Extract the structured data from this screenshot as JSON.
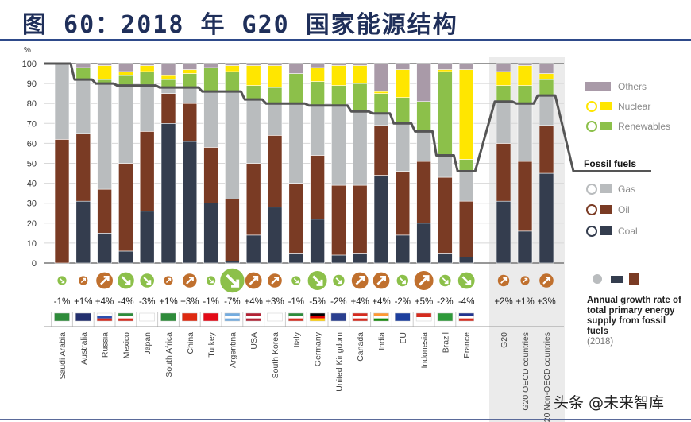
{
  "title": "图 60：2018 年 G20 国家能源结构",
  "watermark": "头条 @未来智库",
  "chart_data": {
    "type": "bar",
    "stacked": true,
    "ylabel": "%",
    "ylim": [
      0,
      100
    ],
    "yticks": [
      0,
      10,
      20,
      30,
      40,
      50,
      60,
      70,
      80,
      90,
      100
    ],
    "grid": true,
    "legend_position": "right",
    "categories": [
      "Saudi Arabia",
      "Australia",
      "Russia",
      "Mexico",
      "Japan",
      "South Africa",
      "China",
      "Turkey",
      "Argentina",
      "USA",
      "South Korea",
      "Italy",
      "Germany",
      "United Kingdom",
      "Canada",
      "India",
      "EU",
      "Indonesia",
      "Brazil",
      "France",
      "G20",
      "G20 OECD countries",
      "G20 Non-OECD countries"
    ],
    "series": [
      {
        "name": "Coal",
        "color": "#343d4e",
        "values": [
          0,
          31,
          15,
          6,
          26,
          70,
          61,
          30,
          1,
          14,
          28,
          5,
          22,
          4,
          5,
          44,
          14,
          20,
          5,
          3,
          31,
          16,
          45
        ]
      },
      {
        "name": "Oil",
        "color": "#7a3b24",
        "values": [
          62,
          34,
          22,
          44,
          40,
          15,
          19,
          28,
          31,
          36,
          36,
          35,
          32,
          35,
          34,
          25,
          32,
          31,
          38,
          28,
          29,
          35,
          24
        ]
      },
      {
        "name": "Gas",
        "color": "#b9bcbe",
        "values": [
          38,
          27,
          53,
          39,
          23,
          3,
          8,
          28,
          54,
          32,
          16,
          40,
          25,
          40,
          37,
          6,
          24,
          15,
          11,
          15,
          21,
          29,
          15
        ]
      },
      {
        "name": "Renewables",
        "color": "#8cc04a",
        "values": [
          0,
          6,
          2,
          5,
          7,
          4,
          7,
          12,
          10,
          7,
          8,
          15,
          12,
          10,
          14,
          10,
          13,
          15,
          42,
          6,
          8,
          9,
          8
        ]
      },
      {
        "name": "Nuclear",
        "color": "#ffe600",
        "values": [
          0,
          0,
          7,
          2,
          3,
          2,
          2,
          0,
          3,
          10,
          11,
          0,
          7,
          10,
          9,
          1,
          14,
          0,
          1,
          45,
          7,
          10,
          3
        ]
      },
      {
        "name": "Others",
        "color": "#a99aa8",
        "values": [
          0,
          2,
          1,
          4,
          1,
          6,
          3,
          2,
          1,
          1,
          1,
          5,
          2,
          1,
          1,
          14,
          3,
          19,
          3,
          3,
          4,
          1,
          5
        ]
      }
    ],
    "fossil_fuels_share": [
      100,
      92,
      90,
      89,
      89,
      88,
      88,
      86,
      86,
      82,
      80,
      80,
      79,
      79,
      76,
      75,
      70,
      66,
      54,
      46,
      81,
      80,
      84
    ],
    "fossil_line_label": "Fossil fuels",
    "fossil_line_color": "#555555",
    "growth_label": "Annual growth rate of total primary energy supply from fossil fuels",
    "growth_year": "(2018)",
    "growth_rates": [
      "-1%",
      "+1%",
      "+4%",
      "-4%",
      "-3%",
      "+1%",
      "+3%",
      "-1%",
      "-7%",
      "+4%",
      "+3%",
      "-1%",
      "-5%",
      "-2%",
      "+4%",
      "+4%",
      "-2%",
      "+5%",
      "-2%",
      "-4%",
      "+2%",
      "+1%",
      "+3%"
    ],
    "growth_values": [
      -1,
      1,
      4,
      -4,
      -3,
      1,
      3,
      -1,
      -7,
      4,
      3,
      -1,
      -5,
      -2,
      4,
      4,
      -2,
      5,
      -2,
      -4,
      2,
      1,
      3
    ],
    "growth_colors": {
      "up": "#c0702e",
      "down": "#8cc04a"
    },
    "aggregate_group": [
      "G20",
      "G20 OECD countries",
      "G20 Non-OECD countries"
    ]
  },
  "flags": [
    [
      "#2e8b3a"
    ],
    [
      "#23306e"
    ],
    [
      "#ffffff",
      "#2a4fb0",
      "#d52b1e"
    ],
    [
      "#2e8b3a",
      "#ffffff",
      "#d52b1e"
    ],
    [
      "#ffffff"
    ],
    [
      "#2e8b3a"
    ],
    [
      "#de2910"
    ],
    [
      "#e30a17"
    ],
    [
      "#74acdf",
      "#ffffff",
      "#74acdf"
    ],
    [
      "#b22234",
      "#ffffff",
      "#b22234"
    ],
    [
      "#ffffff"
    ],
    [
      "#2e8b3a",
      "#ffffff",
      "#d52b1e"
    ],
    [
      "#000000",
      "#dd0000",
      "#ffce00"
    ],
    [
      "#2a3f8f"
    ],
    [
      "#d52b1e",
      "#ffffff",
      "#d52b1e"
    ],
    [
      "#ff9933",
      "#ffffff",
      "#138808"
    ],
    [
      "#1d3f9e"
    ],
    [
      "#d52b1e",
      "#ffffff"
    ],
    [
      "#2e9a3a"
    ],
    [
      "#22348f",
      "#ffffff",
      "#d52b1e"
    ]
  ]
}
